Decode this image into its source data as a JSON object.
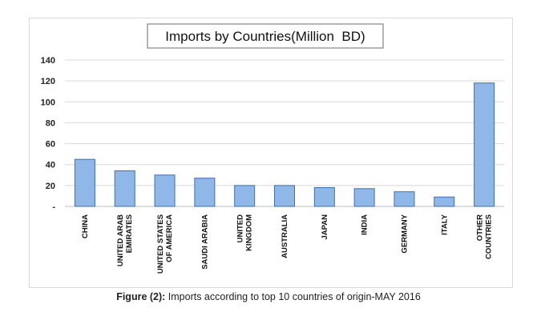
{
  "chart_data": {
    "type": "bar",
    "title": "Imports by Countries(Million  BD)",
    "categories": [
      [
        "CHINA"
      ],
      [
        "UNITED ARAB",
        "EMIRATES"
      ],
      [
        "UNITED STATES",
        "OF AMERICA"
      ],
      [
        "SAUDI ARABIA"
      ],
      [
        "UNITED",
        "KINGDOM"
      ],
      [
        "AUSTRALIA"
      ],
      [
        "JAPAN"
      ],
      [
        "INDIA"
      ],
      [
        "GERMANY"
      ],
      [
        "ITALY"
      ],
      [
        "OTHER",
        "COUNTRIES"
      ]
    ],
    "values": [
      45,
      34,
      30,
      27,
      20,
      20,
      18,
      17,
      14,
      9,
      118
    ],
    "ylim": [
      0,
      140
    ],
    "yticks": [
      {
        "value": 0,
        "label": "-"
      },
      {
        "value": 20,
        "label": "20"
      },
      {
        "value": 40,
        "label": "40"
      },
      {
        "value": 60,
        "label": "60"
      },
      {
        "value": 80,
        "label": "80"
      },
      {
        "value": 100,
        "label": "100"
      },
      {
        "value": 120,
        "label": "120"
      },
      {
        "value": 140,
        "label": "140"
      }
    ],
    "grid": true,
    "legend": "none",
    "colors": {
      "bar_fill": "#8fb8e8",
      "bar_stroke": "#3d6fb0"
    }
  },
  "caption": {
    "lead": "Figure (2):",
    "text": " Imports according to top 10 countries of origin-MAY 2016"
  }
}
